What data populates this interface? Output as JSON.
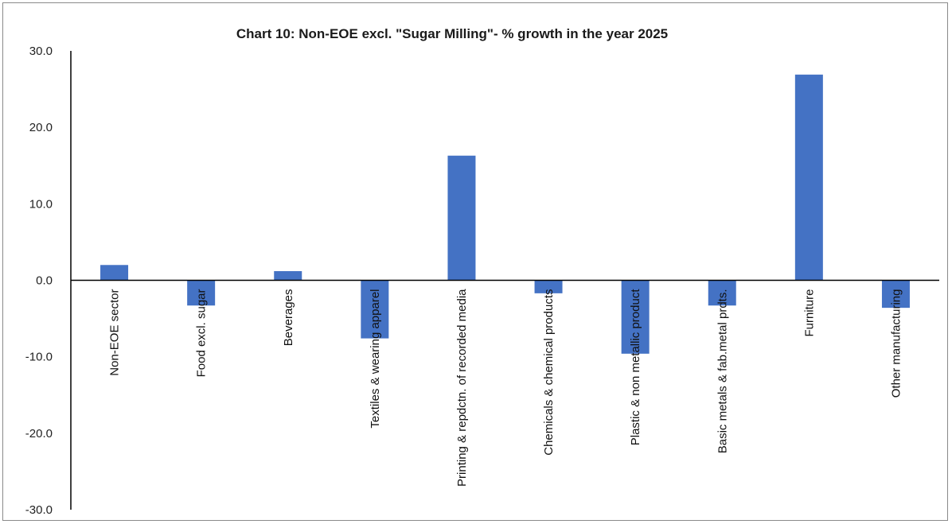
{
  "chart_data": {
    "type": "bar",
    "title": "Chart 10: Non-EOE excl. \"Sugar Milling\"- % growth in the year 2025",
    "categories": [
      "Non-EOE sector",
      "Food excl. sugar",
      "Beverages",
      "Textiles & wearing apparel",
      "Printing & repdctn. of recorded media",
      "Chemicals & chemical products",
      "Plastic & non metallic product",
      "Basic metals & fab.metal prdts.",
      "Furniture",
      "Other manufacturing"
    ],
    "values": [
      2.0,
      -3.3,
      1.2,
      -7.6,
      16.3,
      -1.7,
      -9.6,
      -3.3,
      26.9,
      -3.6
    ],
    "ylim": [
      -30,
      30
    ],
    "yticks": [
      "30.0",
      "20.0",
      "10.0",
      "0.0",
      "-10.0",
      "-20.0",
      "-30.0"
    ],
    "bar_color": "#4472C4",
    "xlabel": "",
    "ylabel": "",
    "grid": false,
    "legend": "none"
  }
}
